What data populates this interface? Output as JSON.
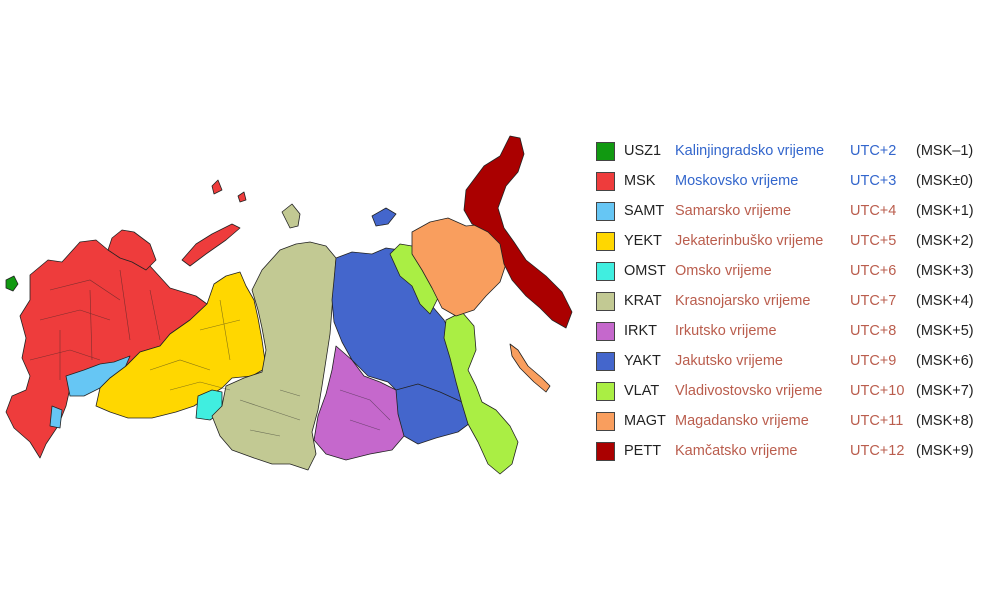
{
  "zones": [
    {
      "code": "USZ1",
      "name": "Kalinjingradsko vrijeme",
      "utc": "UTC+2",
      "msk": "(MSK–1)",
      "color": "#119911",
      "link": "blue"
    },
    {
      "code": "MSK",
      "name": "Moskovsko vrijeme",
      "utc": "UTC+3",
      "msk": "(MSK±0)",
      "color": "#ee3c3c",
      "link": "blue"
    },
    {
      "code": "SAMT",
      "name": "Samarsko vrijeme",
      "utc": "UTC+4",
      "msk": "(MSK+1)",
      "color": "#66c6f4",
      "link": "red"
    },
    {
      "code": "YEKT",
      "name": "Jekaterinbuško vrijeme",
      "utc": "UTC+5",
      "msk": "(MSK+2)",
      "color": "#ffd700",
      "link": "red"
    },
    {
      "code": "OMST",
      "name": "Omsko vrijeme",
      "utc": "UTC+6",
      "msk": "(MSK+3)",
      "color": "#40eee0",
      "link": "red"
    },
    {
      "code": "KRAT",
      "name": "Krasnojarsko vrijeme",
      "utc": "UTC+7",
      "msk": "(MSK+4)",
      "color": "#c2c993",
      "link": "red"
    },
    {
      "code": "IRKT",
      "name": "Irkutsko vrijeme",
      "utc": "UTC+8",
      "msk": "(MSK+5)",
      "color": "#c568cc",
      "link": "red"
    },
    {
      "code": "YAKT",
      "name": "Jakutsko vrijeme",
      "utc": "UTC+9",
      "msk": "(MSK+6)",
      "color": "#4466cc",
      "link": "red"
    },
    {
      "code": "VLAT",
      "name": "Vladivostovsko vrijeme",
      "utc": "UTC+10",
      "msk": "(MSK+7)",
      "color": "#aaee44",
      "link": "red"
    },
    {
      "code": "MAGT",
      "name": "Magadansko vrijeme",
      "utc": "UTC+11",
      "msk": "(MSK+8)",
      "color": "#f99e5e",
      "link": "red"
    },
    {
      "code": "PETT",
      "name": "Kamčatsko vrijeme",
      "utc": "UTC+12",
      "msk": "(MSK+9)",
      "color": "#aa0000",
      "link": "red"
    }
  ]
}
